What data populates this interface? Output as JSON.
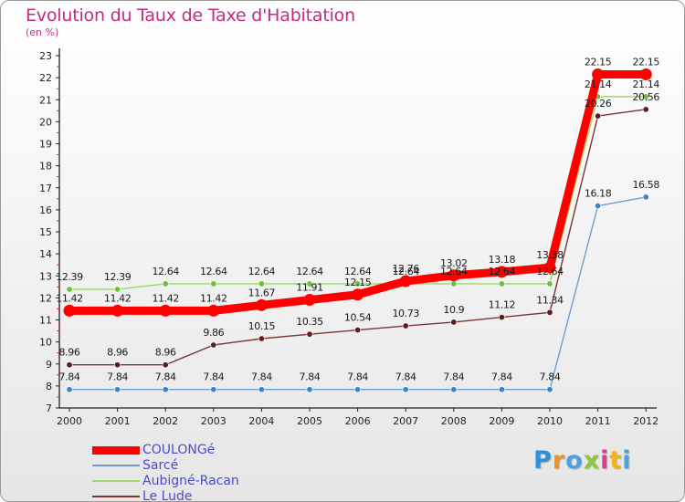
{
  "header": {
    "title": "Evolution du Taux de Taxe d'Habitation",
    "subtitle": "(en %)"
  },
  "logo": {
    "text": "Proxiti",
    "letter_colors": [
      "#2f8fd8",
      "#f29221",
      "#4aa3df",
      "#8dc63f",
      "#e23b8a",
      "#f2b21b",
      "#4aa3df"
    ]
  },
  "chart_data": {
    "type": "line",
    "title": "Evolution du Taux de Taxe d'Habitation",
    "subtitle": "(en %)",
    "xlabel": "",
    "ylabel": "",
    "x": [
      "2000",
      "2001",
      "2002",
      "2003",
      "2004",
      "2005",
      "2006",
      "2007",
      "2008",
      "2009",
      "2010",
      "2011",
      "2012"
    ],
    "y_ticks": [
      "7",
      "8",
      "9",
      "10",
      "11",
      "12",
      "13",
      "14",
      "15",
      "16",
      "17",
      "18",
      "19",
      "20",
      "21",
      "22",
      "23"
    ],
    "ylim": [
      7,
      23
    ],
    "grid": false,
    "legend_position": "bottom-left",
    "series": [
      {
        "name": "COULONGé",
        "color": "#ff0000",
        "values": [
          11.42,
          11.42,
          11.42,
          11.42,
          11.67,
          11.91,
          12.15,
          12.76,
          13.02,
          13.18,
          13.38,
          22.15,
          22.15
        ],
        "labels": [
          "11.42",
          "11.42",
          "11.42",
          "11.42",
          "11.67",
          "11.91",
          "12.15",
          "12.76",
          "13.02",
          "13.18",
          "13.38",
          "22.15",
          "22.15"
        ],
        "emphasis": "thick"
      },
      {
        "name": "Sarcé",
        "color": "#6f9fcf",
        "marker_color": "#3d83c7",
        "values": [
          7.84,
          7.84,
          7.84,
          7.84,
          7.84,
          7.84,
          7.84,
          7.84,
          7.84,
          7.84,
          7.84,
          16.18,
          16.58
        ],
        "labels": [
          "7.84",
          "7.84",
          "7.84",
          "7.84",
          "7.84",
          "7.84",
          "7.84",
          "7.84",
          "7.84",
          "7.84",
          "7.84",
          "16.18",
          "16.58"
        ]
      },
      {
        "name": "Aubigné-Racan",
        "color": "#9ad86a",
        "marker_color": "#6cc13a",
        "values": [
          12.39,
          12.39,
          12.64,
          12.64,
          12.64,
          12.64,
          12.64,
          12.64,
          12.64,
          12.64,
          12.64,
          21.14,
          21.14
        ],
        "labels": [
          "12.39",
          "12.39",
          "12.64",
          "12.64",
          "12.64",
          "12.64",
          "12.64",
          "12.64",
          "12.64",
          "12.64",
          "12.64",
          "21.14",
          "21.14"
        ]
      },
      {
        "name": "Le Lude",
        "color": "#7a3535",
        "marker_color": "#5e1b1b",
        "values": [
          8.96,
          8.96,
          8.96,
          9.86,
          10.15,
          10.35,
          10.54,
          10.73,
          10.9,
          11.12,
          11.34,
          20.26,
          20.56
        ],
        "labels": [
          "8.96",
          "8.96",
          "8.96",
          "9.86",
          "10.15",
          "10.35",
          "10.54",
          "10.73",
          "10.9",
          "11.12",
          "11.34",
          "20.26",
          "20.56"
        ]
      }
    ]
  }
}
